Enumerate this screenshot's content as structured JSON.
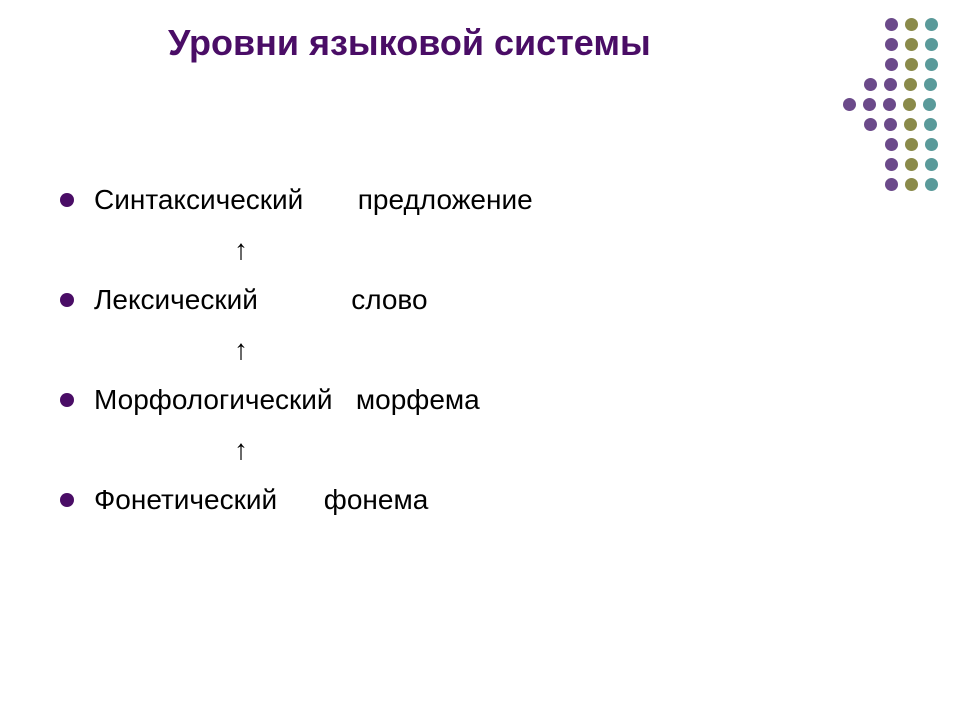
{
  "title": "Уровни языковой системы",
  "title_color": "#4a0d66",
  "title_fontsize": 36,
  "bullet_color": "#4a0d66",
  "body_fontsize": 28,
  "background_color": "#ffffff",
  "items": [
    {
      "level": "Синтаксический",
      "unit": "предложение",
      "spacing": "       "
    },
    {
      "level": "Лексический",
      "unit": "слово",
      "spacing": "            "
    },
    {
      "level": "Морфологический",
      "unit": "морфема",
      "spacing": "   "
    },
    {
      "level": "Фонетический",
      "unit": "фонема",
      "spacing": "      "
    }
  ],
  "arrow": "↑",
  "decoration": {
    "rows": [
      {
        "colors": [
          "#6b4a8a",
          "#8a8a4a",
          "#5a9a9a"
        ],
        "offset": 42
      },
      {
        "colors": [
          "#6b4a8a",
          "#8a8a4a",
          "#5a9a9a"
        ],
        "offset": 42
      },
      {
        "colors": [
          "#6b4a8a",
          "#8a8a4a",
          "#5a9a9a"
        ],
        "offset": 42
      },
      {
        "colors": [
          "#6b4a8a",
          "#6b4a8a",
          "#8a8a4a",
          "#5a9a9a"
        ],
        "offset": 21
      },
      {
        "colors": [
          "#6b4a8a",
          "#6b4a8a",
          "#6b4a8a",
          "#8a8a4a",
          "#5a9a9a"
        ],
        "offset": 0
      },
      {
        "colors": [
          "#6b4a8a",
          "#6b4a8a",
          "#8a8a4a",
          "#5a9a9a"
        ],
        "offset": 21
      },
      {
        "colors": [
          "#6b4a8a",
          "#8a8a4a",
          "#5a9a9a"
        ],
        "offset": 42
      },
      {
        "colors": [
          "#6b4a8a",
          "#8a8a4a",
          "#5a9a9a"
        ],
        "offset": 42
      },
      {
        "colors": [
          "#6b4a8a",
          "#8a8a4a",
          "#5a9a9a"
        ],
        "offset": 42
      }
    ],
    "dot_size": 13,
    "gap": 7
  }
}
